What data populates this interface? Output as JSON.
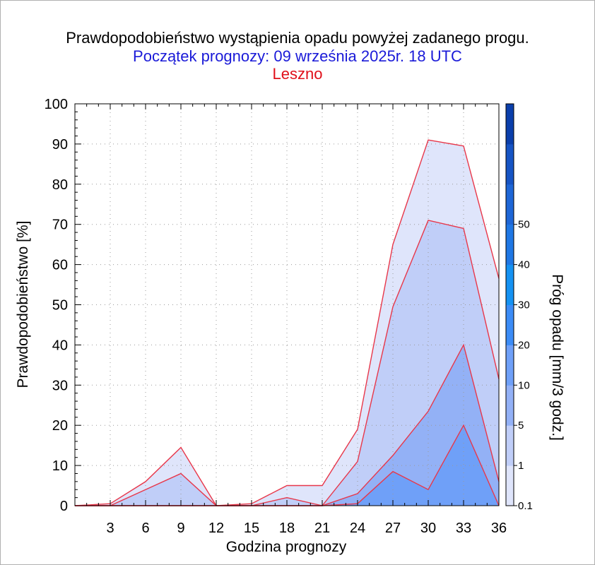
{
  "title": "Prawdopodobieństwo wystąpienia opadu powyżej zadanego progu.",
  "subtitle": "Początek prognozy: 09 września 2025r. 18 UTC",
  "location": "Leszno",
  "colors": {
    "title": "#000000",
    "subtitle": "#1a1ad8",
    "location": "#e0101a",
    "boundary_line": "#e8374a"
  },
  "chart_data": {
    "type": "area",
    "xlabel": "Godzina prognozy",
    "ylabel": "Prawdopodobieństwo [%]",
    "colorbar_label": "Próg opadu [mm/3 godz.]",
    "xlim": [
      0,
      36
    ],
    "ylim": [
      0,
      100
    ],
    "x_ticks": [
      "3",
      "6",
      "9",
      "12",
      "15",
      "18",
      "21",
      "24",
      "27",
      "30",
      "33",
      "36"
    ],
    "y_ticks": [
      "0",
      "10",
      "20",
      "30",
      "40",
      "50",
      "60",
      "70",
      "80",
      "90",
      "100"
    ],
    "grid": true,
    "x": [
      0,
      3,
      6,
      9,
      12,
      15,
      18,
      21,
      24,
      27,
      30,
      33,
      36
    ],
    "series": [
      {
        "threshold": 0.1,
        "color": "#dfe5fb",
        "values": [
          0,
          0.5,
          6,
          14.5,
          0,
          0.5,
          5,
          5,
          19,
          65,
          91,
          89.5,
          56.5
        ]
      },
      {
        "threshold": 1,
        "color": "#c0cef8",
        "values": [
          0,
          0,
          4,
          8,
          0,
          0,
          2,
          0,
          11,
          49.5,
          71,
          69,
          31.5
        ]
      },
      {
        "threshold": 5,
        "color": "#93b1f6",
        "values": [
          0,
          0,
          0,
          0,
          0,
          0,
          0,
          0,
          3,
          12.5,
          23.5,
          40,
          6
        ]
      },
      {
        "threshold": 10,
        "color": "#6fa0f8",
        "values": [
          0,
          0,
          0,
          0,
          0,
          0,
          0,
          0,
          0.5,
          8.5,
          4,
          20,
          0
        ]
      }
    ],
    "colorbar": {
      "tick_labels": [
        "0.1",
        "1",
        "5",
        "10",
        "20",
        "30",
        "40",
        "50"
      ],
      "segments": [
        {
          "from": 0,
          "to": 1,
          "color": "#dfe5fb"
        },
        {
          "from": 1,
          "to": 2,
          "color": "#c0cef8"
        },
        {
          "from": 2,
          "to": 3,
          "color": "#93b1f6"
        },
        {
          "from": 3,
          "to": 4,
          "color": "#6fa0f8"
        },
        {
          "from": 4,
          "to": 5,
          "color": "#3c8cf6"
        },
        {
          "from": 5,
          "to": 6,
          "color": "#1592f2"
        },
        {
          "from": 6,
          "to": 7,
          "color": "#1f77e4"
        },
        {
          "from": 7,
          "to": 8,
          "color": "#1e66d6"
        },
        {
          "from": 8,
          "to": 9,
          "color": "#1654c4"
        },
        {
          "from": 9,
          "to": 10,
          "color": "#0b3fab"
        }
      ]
    }
  }
}
